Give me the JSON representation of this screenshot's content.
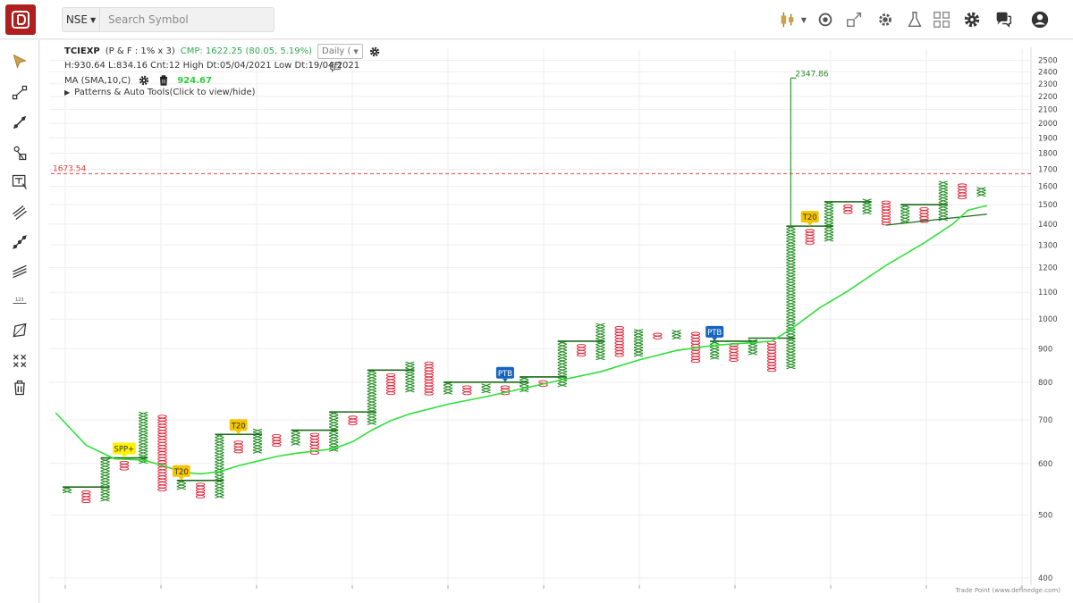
{
  "topbar": {
    "exchange": "NSE",
    "search_placeholder": "Search Symbol",
    "icons": [
      "candlestick-icon",
      "replay-icon",
      "scale-icon",
      "scanner-gear-icon",
      "lab-icon",
      "layout-grid-icon",
      "settings-icon",
      "help-chat-icon",
      "user-icon"
    ]
  },
  "left_tools": [
    "cursor-icon",
    "line-tool-icon",
    "trendline-icon",
    "fib-tool-icon",
    "text-note-icon",
    "channel-icon",
    "ray-icon",
    "parallel-lines-icon",
    "measure-icon",
    "polygon-icon",
    "cross-delete-icon",
    "trash-icon"
  ],
  "info": {
    "symbol": "TCIEXP",
    "params": "(P & F : 1% x 3)",
    "cmp": "CMP: 1622.25 (80.05, 5.19%)",
    "timeframe": "Daily (",
    "stats": "H:930.64 L:834.16 Cnt:12 High Dt:05/04/2021 Low Dt:19/04/2021",
    "ma_label": "MA (SMA,10,C)",
    "ma_value": "924.67",
    "patterns": "Patterns & Auto Tools(Click to view/hide)"
  },
  "watermark": "Trade Point (www.definedge.com)",
  "colors": {
    "x_col": "#1e8c1e",
    "o_col": "#e0283a",
    "sma": "#2fe03a",
    "resist": "#1a6a1a",
    "hline": "#e04040",
    "yellow_tag": "#f5c400",
    "blue_tag": "#1565c0"
  },
  "chart_data": {
    "type": "point-and-figure",
    "scale": "log",
    "y_ticks": [
      400,
      500,
      600,
      700,
      800,
      900,
      1000,
      1100,
      1200,
      1300,
      1400,
      1500,
      1600,
      1700,
      1800,
      1900,
      2000,
      2100,
      2200,
      2300,
      2400,
      2500
    ],
    "y_range": [
      390,
      2560
    ],
    "horizontal_line": {
      "value": 1673.54,
      "label": "1673.54"
    },
    "spike": {
      "value": 2347.86,
      "label": "2347.86",
      "column": 38
    },
    "columns": [
      {
        "t": "X",
        "low": 540,
        "high": 552
      },
      {
        "t": "O",
        "low": 520,
        "high": 545
      },
      {
        "t": "X",
        "low": 525,
        "high": 610
      },
      {
        "t": "O",
        "low": 588,
        "high": 605
      },
      {
        "t": "X",
        "low": 600,
        "high": 720
      },
      {
        "t": "O",
        "low": 545,
        "high": 712
      },
      {
        "t": "X",
        "low": 545,
        "high": 565
      },
      {
        "t": "O",
        "low": 530,
        "high": 560
      },
      {
        "t": "X",
        "low": 530,
        "high": 665
      },
      {
        "t": "O",
        "low": 622,
        "high": 650
      },
      {
        "t": "X",
        "low": 625,
        "high": 678
      },
      {
        "t": "O",
        "low": 638,
        "high": 665
      },
      {
        "t": "X",
        "low": 640,
        "high": 675
      },
      {
        "t": "O",
        "low": 622,
        "high": 668
      },
      {
        "t": "X",
        "low": 628,
        "high": 720
      },
      {
        "t": "O",
        "low": 685,
        "high": 710
      },
      {
        "t": "X",
        "low": 690,
        "high": 835
      },
      {
        "t": "O",
        "low": 765,
        "high": 825
      },
      {
        "t": "X",
        "low": 770,
        "high": 860
      },
      {
        "t": "O",
        "low": 762,
        "high": 860
      },
      {
        "t": "X",
        "low": 768,
        "high": 800
      },
      {
        "t": "O",
        "low": 765,
        "high": 790
      },
      {
        "t": "X",
        "low": 770,
        "high": 795
      },
      {
        "t": "O",
        "low": 765,
        "high": 790
      },
      {
        "t": "X",
        "low": 770,
        "high": 815
      },
      {
        "t": "O",
        "low": 785,
        "high": 805
      },
      {
        "t": "X",
        "low": 790,
        "high": 925
      },
      {
        "t": "O",
        "low": 880,
        "high": 915
      },
      {
        "t": "X",
        "low": 870,
        "high": 985
      },
      {
        "t": "O",
        "low": 875,
        "high": 975
      },
      {
        "t": "X",
        "low": 878,
        "high": 965
      },
      {
        "t": "O",
        "low": 930,
        "high": 952
      },
      {
        "t": "X",
        "low": 935,
        "high": 962
      },
      {
        "t": "O",
        "low": 860,
        "high": 955
      },
      {
        "t": "X",
        "low": 868,
        "high": 925
      },
      {
        "t": "O",
        "low": 862,
        "high": 918
      },
      {
        "t": "X",
        "low": 880,
        "high": 930
      },
      {
        "t": "O",
        "low": 830,
        "high": 925
      },
      {
        "t": "X",
        "low": 835,
        "high": 1390
      },
      {
        "t": "O",
        "low": 1310,
        "high": 1375
      },
      {
        "t": "X",
        "low": 1320,
        "high": 1515
      },
      {
        "t": "O",
        "low": 1445,
        "high": 1500
      },
      {
        "t": "X",
        "low": 1455,
        "high": 1530
      },
      {
        "t": "O",
        "low": 1390,
        "high": 1520
      },
      {
        "t": "X",
        "low": 1405,
        "high": 1500
      },
      {
        "t": "O",
        "low": 1410,
        "high": 1485
      },
      {
        "t": "X",
        "low": 1415,
        "high": 1630
      },
      {
        "t": "O",
        "low": 1530,
        "high": 1615
      },
      {
        "t": "X",
        "low": 1540,
        "high": 1595
      }
    ],
    "sma_series": [
      {
        "col": -0.6,
        "v": 718
      },
      {
        "col": 1,
        "v": 640
      },
      {
        "col": 2.5,
        "v": 610
      },
      {
        "col": 4,
        "v": 607
      },
      {
        "col": 5,
        "v": 596
      },
      {
        "col": 6,
        "v": 582
      },
      {
        "col": 7,
        "v": 578
      },
      {
        "col": 8,
        "v": 583
      },
      {
        "col": 9,
        "v": 595
      },
      {
        "col": 10,
        "v": 605
      },
      {
        "col": 11,
        "v": 615
      },
      {
        "col": 12,
        "v": 622
      },
      {
        "col": 13,
        "v": 627
      },
      {
        "col": 14,
        "v": 632
      },
      {
        "col": 15,
        "v": 648
      },
      {
        "col": 16,
        "v": 675
      },
      {
        "col": 17,
        "v": 698
      },
      {
        "col": 18,
        "v": 715
      },
      {
        "col": 20,
        "v": 740
      },
      {
        "col": 22,
        "v": 760
      },
      {
        "col": 24,
        "v": 783
      },
      {
        "col": 26,
        "v": 807
      },
      {
        "col": 28,
        "v": 830
      },
      {
        "col": 30,
        "v": 865
      },
      {
        "col": 32,
        "v": 895
      },
      {
        "col": 34,
        "v": 912
      },
      {
        "col": 36,
        "v": 920
      },
      {
        "col": 37,
        "v": 925
      },
      {
        "col": 38,
        "v": 965
      },
      {
        "col": 39.5,
        "v": 1040
      },
      {
        "col": 41,
        "v": 1105
      },
      {
        "col": 43,
        "v": 1210
      },
      {
        "col": 45,
        "v": 1310
      },
      {
        "col": 46.5,
        "v": 1400
      },
      {
        "col": 47.3,
        "v": 1470
      },
      {
        "col": 48.3,
        "v": 1495
      }
    ],
    "resistance_lines": [
      {
        "c1": 0,
        "c2": 2,
        "v": 552
      },
      {
        "c1": 2,
        "c2": 4,
        "v": 612
      },
      {
        "c1": 6,
        "c2": 8,
        "v": 565
      },
      {
        "c1": 8,
        "c2": 10,
        "v": 665
      },
      {
        "c1": 12,
        "c2": 14,
        "v": 675
      },
      {
        "c1": 14,
        "c2": 16,
        "v": 720
      },
      {
        "c1": 16,
        "c2": 18,
        "v": 835
      },
      {
        "c1": 20,
        "c2": 24,
        "v": 800
      },
      {
        "c1": 24,
        "c2": 26,
        "v": 815
      },
      {
        "c1": 26,
        "c2": 28,
        "v": 925
      },
      {
        "c1": 34,
        "c2": 36,
        "v": 925
      },
      {
        "c1": 36,
        "c2": 38,
        "v": 935
      },
      {
        "c1": 38,
        "c2": 40,
        "v": 1390
      },
      {
        "c1": 40,
        "c2": 42,
        "v": 1515
      },
      {
        "c1": 44,
        "c2": 46,
        "v": 1500
      }
    ],
    "support_line": {
      "c1": 43,
      "v1": 1395,
      "c2": 48.3,
      "v2": 1450
    },
    "tags": [
      {
        "label": "SPP+",
        "col": 3,
        "v": 612,
        "style": "yellow-light"
      },
      {
        "label": "T20",
        "col": 6,
        "v": 565,
        "style": "yellow"
      },
      {
        "label": "T20",
        "col": 9,
        "v": 665,
        "style": "yellow"
      },
      {
        "label": "PTB",
        "col": 23,
        "v": 800,
        "style": "blue"
      },
      {
        "label": "PTB",
        "col": 34,
        "v": 925,
        "style": "blue"
      },
      {
        "label": "T20",
        "col": 39,
        "v": 1390,
        "style": "yellow"
      }
    ]
  }
}
